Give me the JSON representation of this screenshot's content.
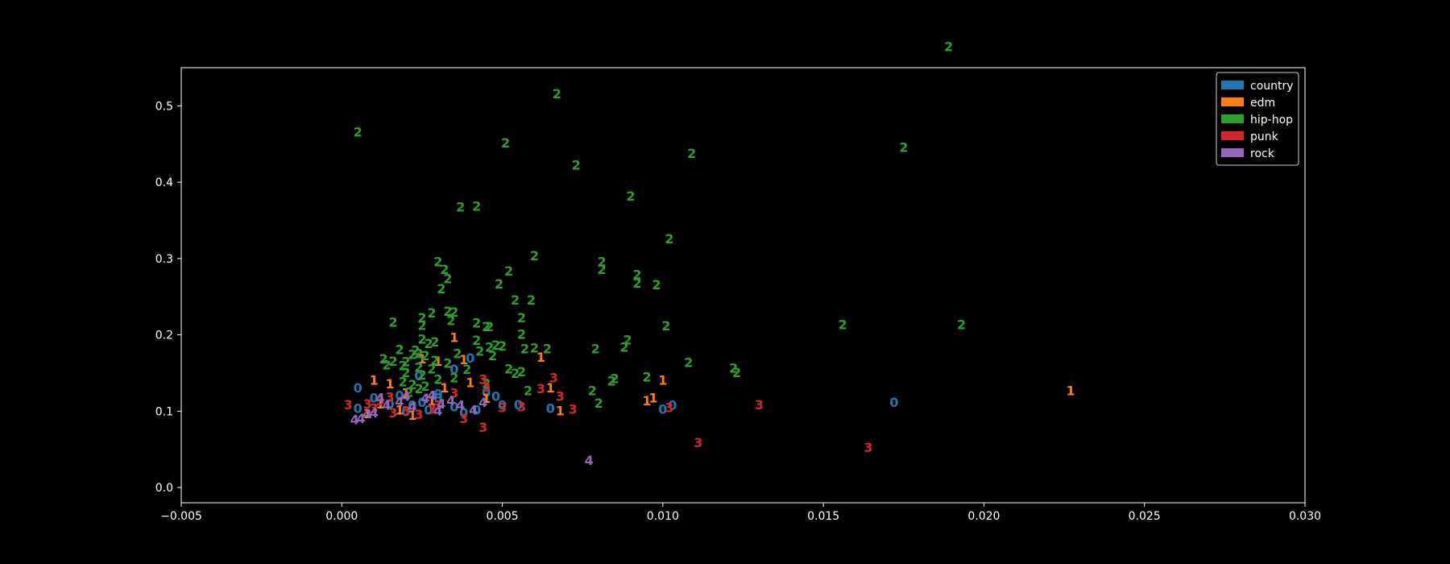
{
  "chart_data": {
    "type": "scatter",
    "marker": "cluster-number-glyph",
    "xlim": [
      -0.005,
      0.03
    ],
    "ylim": [
      -0.02,
      0.55
    ],
    "xticks": [
      -0.005,
      0.0,
      0.005,
      0.01,
      0.015,
      0.02,
      0.025,
      0.03
    ],
    "xtick_labels": [
      "−0.005",
      "0.000",
      "0.005",
      "0.010",
      "0.015",
      "0.020",
      "0.025",
      "0.030"
    ],
    "yticks": [
      0.0,
      0.1,
      0.2,
      0.3,
      0.4,
      0.5
    ],
    "ytick_labels": [
      "0.0",
      "0.1",
      "0.2",
      "0.3",
      "0.4",
      "0.5"
    ],
    "grid": false,
    "legend_placement": "top-right",
    "series": [
      {
        "name": "country",
        "label": "0",
        "color": "#1f77b4",
        "points": [
          [
            0.0005,
            0.131
          ],
          [
            0.0005,
            0.104
          ],
          [
            0.001,
            0.118
          ],
          [
            0.0015,
            0.11
          ],
          [
            0.002,
            0.1
          ],
          [
            0.0025,
            0.112
          ],
          [
            0.003,
            0.123
          ],
          [
            0.0035,
            0.106
          ],
          [
            0.0024,
            0.147
          ],
          [
            0.004,
            0.17
          ],
          [
            0.0035,
            0.155
          ],
          [
            0.0045,
            0.125
          ],
          [
            0.0048,
            0.12
          ],
          [
            0.005,
            0.108
          ],
          [
            0.0042,
            0.102
          ],
          [
            0.0038,
            0.098
          ],
          [
            0.0055,
            0.109
          ],
          [
            0.0065,
            0.104
          ],
          [
            0.01,
            0.103
          ],
          [
            0.0103,
            0.108
          ],
          [
            0.0172,
            0.112
          ],
          [
            0.003,
            0.118
          ],
          [
            0.0018,
            0.121
          ],
          [
            0.0022,
            0.108
          ],
          [
            0.0027,
            0.102
          ]
        ]
      },
      {
        "name": "edm",
        "label": "1",
        "color": "#ff7f0e",
        "points": [
          [
            0.001,
            0.141
          ],
          [
            0.0015,
            0.136
          ],
          [
            0.002,
            0.124
          ],
          [
            0.0025,
            0.169
          ],
          [
            0.003,
            0.166
          ],
          [
            0.0035,
            0.197
          ],
          [
            0.0038,
            0.168
          ],
          [
            0.004,
            0.138
          ],
          [
            0.0032,
            0.131
          ],
          [
            0.0045,
            0.117
          ],
          [
            0.0062,
            0.171
          ],
          [
            0.0065,
            0.131
          ],
          [
            0.0068,
            0.101
          ],
          [
            0.0095,
            0.114
          ],
          [
            0.0097,
            0.118
          ],
          [
            0.01,
            0.141
          ],
          [
            0.0227,
            0.127
          ],
          [
            0.0012,
            0.11
          ],
          [
            0.0018,
            0.102
          ],
          [
            0.0028,
            0.114
          ],
          [
            0.0008,
            0.097
          ],
          [
            0.0022,
            0.095
          ]
        ]
      },
      {
        "name": "hip-hop",
        "label": "2",
        "color": "#2ca02c",
        "points": [
          [
            0.0189,
            0.578
          ],
          [
            0.0067,
            0.516
          ],
          [
            0.0005,
            0.466
          ],
          [
            0.0051,
            0.452
          ],
          [
            0.0175,
            0.446
          ],
          [
            0.0109,
            0.438
          ],
          [
            0.0073,
            0.423
          ],
          [
            0.009,
            0.382
          ],
          [
            0.0037,
            0.368
          ],
          [
            0.0042,
            0.369
          ],
          [
            0.0102,
            0.326
          ],
          [
            0.006,
            0.304
          ],
          [
            0.003,
            0.296
          ],
          [
            0.0081,
            0.296
          ],
          [
            0.0032,
            0.286
          ],
          [
            0.0052,
            0.284
          ],
          [
            0.0081,
            0.286
          ],
          [
            0.0092,
            0.279
          ],
          [
            0.0033,
            0.274
          ],
          [
            0.0092,
            0.268
          ],
          [
            0.0049,
            0.267
          ],
          [
            0.0098,
            0.266
          ],
          [
            0.0031,
            0.261
          ],
          [
            0.0054,
            0.246
          ],
          [
            0.0059,
            0.246
          ],
          [
            0.0056,
            0.223
          ],
          [
            0.0025,
            0.223
          ],
          [
            0.0016,
            0.217
          ],
          [
            0.0028,
            0.229
          ],
          [
            0.0033,
            0.231
          ],
          [
            0.0034,
            0.219
          ],
          [
            0.0035,
            0.23
          ],
          [
            0.0025,
            0.213
          ],
          [
            0.0042,
            0.216
          ],
          [
            0.0045,
            0.211
          ],
          [
            0.0046,
            0.211
          ],
          [
            0.0101,
            0.212
          ],
          [
            0.0156,
            0.214
          ],
          [
            0.0193,
            0.214
          ],
          [
            0.0056,
            0.201
          ],
          [
            0.0025,
            0.195
          ],
          [
            0.0027,
            0.189
          ],
          [
            0.0029,
            0.191
          ],
          [
            0.0042,
            0.193
          ],
          [
            0.0046,
            0.184
          ],
          [
            0.0048,
            0.187
          ],
          [
            0.005,
            0.186
          ],
          [
            0.0057,
            0.182
          ],
          [
            0.006,
            0.183
          ],
          [
            0.0064,
            0.182
          ],
          [
            0.0079,
            0.182
          ],
          [
            0.0088,
            0.184
          ],
          [
            0.0089,
            0.194
          ],
          [
            0.0018,
            0.181
          ],
          [
            0.0022,
            0.175
          ],
          [
            0.0023,
            0.18
          ],
          [
            0.0024,
            0.176
          ],
          [
            0.0026,
            0.173
          ],
          [
            0.0029,
            0.167
          ],
          [
            0.0036,
            0.176
          ],
          [
            0.0043,
            0.179
          ],
          [
            0.0047,
            0.173
          ],
          [
            0.0013,
            0.169
          ],
          [
            0.0016,
            0.166
          ],
          [
            0.002,
            0.165
          ],
          [
            0.0033,
            0.163
          ],
          [
            0.0014,
            0.161
          ],
          [
            0.0019,
            0.16
          ],
          [
            0.0024,
            0.158
          ],
          [
            0.0028,
            0.156
          ],
          [
            0.0039,
            0.155
          ],
          [
            0.0052,
            0.156
          ],
          [
            0.0056,
            0.152
          ],
          [
            0.0054,
            0.15
          ],
          [
            0.0108,
            0.164
          ],
          [
            0.0122,
            0.157
          ],
          [
            0.0123,
            0.151
          ],
          [
            0.0095,
            0.145
          ],
          [
            0.0085,
            0.143
          ],
          [
            0.0084,
            0.14
          ],
          [
            0.002,
            0.151
          ],
          [
            0.0025,
            0.148
          ],
          [
            0.003,
            0.142
          ],
          [
            0.0035,
            0.144
          ],
          [
            0.0045,
            0.137
          ],
          [
            0.0058,
            0.127
          ],
          [
            0.0078,
            0.127
          ],
          [
            0.008,
            0.111
          ],
          [
            0.0019,
            0.139
          ],
          [
            0.0022,
            0.135
          ],
          [
            0.0024,
            0.13
          ],
          [
            0.0021,
            0.125
          ],
          [
            0.0026,
            0.133
          ]
        ]
      },
      {
        "name": "punk",
        "label": "3",
        "color": "#d62728",
        "points": [
          [
            0.0002,
            0.109
          ],
          [
            0.0008,
            0.11
          ],
          [
            0.0012,
            0.114
          ],
          [
            0.0015,
            0.119
          ],
          [
            0.002,
            0.101
          ],
          [
            0.0024,
            0.096
          ],
          [
            0.003,
            0.108
          ],
          [
            0.0035,
            0.124
          ],
          [
            0.0038,
            0.091
          ],
          [
            0.0044,
            0.079
          ],
          [
            0.0044,
            0.142
          ],
          [
            0.0045,
            0.132
          ],
          [
            0.005,
            0.105
          ],
          [
            0.0056,
            0.106
          ],
          [
            0.0062,
            0.13
          ],
          [
            0.0066,
            0.144
          ],
          [
            0.0068,
            0.12
          ],
          [
            0.0072,
            0.103
          ],
          [
            0.0102,
            0.105
          ],
          [
            0.0111,
            0.059
          ],
          [
            0.013,
            0.109
          ],
          [
            0.0164,
            0.053
          ],
          [
            0.0016,
            0.098
          ],
          [
            0.0028,
            0.103
          ],
          [
            0.001,
            0.104
          ]
        ]
      },
      {
        "name": "rock",
        "label": "4",
        "color": "#9467bd",
        "points": [
          [
            0.0004,
            0.089
          ],
          [
            0.0006,
            0.091
          ],
          [
            0.001,
            0.098
          ],
          [
            0.0014,
            0.108
          ],
          [
            0.0018,
            0.113
          ],
          [
            0.0022,
            0.106
          ],
          [
            0.0026,
            0.117
          ],
          [
            0.0028,
            0.121
          ],
          [
            0.0031,
            0.11
          ],
          [
            0.0034,
            0.114
          ],
          [
            0.0037,
            0.108
          ],
          [
            0.0041,
            0.102
          ],
          [
            0.0044,
            0.112
          ],
          [
            0.0077,
            0.036
          ],
          [
            0.0012,
            0.118
          ],
          [
            0.002,
            0.12
          ],
          [
            0.0008,
            0.097
          ],
          [
            0.003,
            0.101
          ]
        ]
      }
    ]
  }
}
